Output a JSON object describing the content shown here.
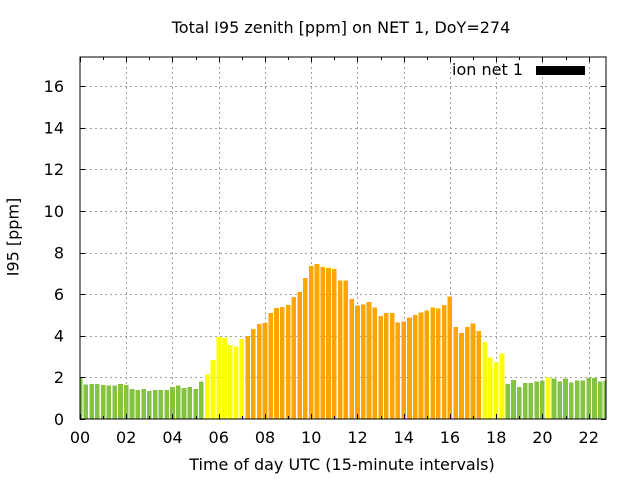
{
  "chart_data": {
    "type": "bar",
    "title": "Total I95 zenith [ppm] on NET 1, DoY=274",
    "xlabel": "Time of day UTC (15-minute intervals)",
    "ylabel": "I95 [ppm]",
    "xlim": [
      0,
      22.75
    ],
    "ylim": [
      0,
      17.4
    ],
    "grid": true,
    "x_ticks": [
      0,
      2,
      4,
      6,
      8,
      10,
      12,
      14,
      16,
      18,
      20,
      22
    ],
    "x_tick_labels": [
      "00",
      "02",
      "04",
      "06",
      "08",
      "10",
      "12",
      "14",
      "16",
      "18",
      "20",
      "22"
    ],
    "x_minor_ticks": [
      1,
      3,
      5,
      7,
      9,
      11,
      13,
      15,
      17,
      19,
      21
    ],
    "y_ticks": [
      0,
      2,
      4,
      6,
      8,
      10,
      12,
      14,
      16
    ],
    "y_tick_labels": [
      "0",
      "2",
      "4",
      "6",
      "8",
      "10",
      "12",
      "14",
      "16"
    ],
    "legend": {
      "position": "top-right",
      "entries": [
        {
          "label": "ion net 1",
          "color": "#000000"
        }
      ]
    },
    "color_levels": [
      {
        "from": 0,
        "to": 2,
        "color": "#84c241"
      },
      {
        "from": 2,
        "to": 4,
        "color": "#ffff00"
      },
      {
        "from": 4,
        "to": null,
        "color": "#ffa500"
      }
    ],
    "series": [
      {
        "name": "ion net 1",
        "x_unit": "hours UTC",
        "x": [
          0,
          0.25,
          0.5,
          0.75,
          1,
          1.25,
          1.5,
          1.75,
          2,
          2.25,
          2.5,
          2.75,
          3,
          3.25,
          3.5,
          3.75,
          4,
          4.25,
          4.5,
          4.75,
          5,
          5.25,
          5.5,
          5.75,
          6,
          6.25,
          6.5,
          6.75,
          7,
          7.25,
          7.5,
          7.75,
          8,
          8.25,
          8.5,
          8.75,
          9,
          9.25,
          9.5,
          9.75,
          10,
          10.25,
          10.5,
          10.75,
          11,
          11.25,
          11.5,
          11.75,
          12,
          12.25,
          12.5,
          12.75,
          13,
          13.25,
          13.5,
          13.75,
          14,
          14.25,
          14.5,
          14.75,
          15,
          15.25,
          15.5,
          15.75,
          16,
          16.25,
          16.5,
          16.75,
          17,
          17.25,
          17.5,
          17.75,
          18,
          18.25,
          18.5,
          18.75,
          19,
          19.25,
          19.5,
          19.75,
          20,
          20.25,
          20.5,
          20.75,
          21,
          21.25,
          21.5,
          21.75,
          22,
          22.25,
          22.5,
          22.75
        ],
        "values": [
          1.98,
          1.65,
          1.68,
          1.68,
          1.63,
          1.6,
          1.6,
          1.68,
          1.63,
          1.45,
          1.4,
          1.45,
          1.35,
          1.4,
          1.4,
          1.4,
          1.55,
          1.6,
          1.5,
          1.55,
          1.45,
          1.8,
          2.14,
          2.84,
          3.94,
          3.89,
          3.56,
          3.48,
          3.85,
          4.0,
          4.33,
          4.57,
          4.62,
          5.1,
          5.34,
          5.39,
          5.48,
          5.87,
          6.11,
          6.78,
          7.36,
          7.45,
          7.31,
          7.26,
          7.21,
          6.65,
          6.65,
          5.78,
          5.45,
          5.5,
          5.63,
          5.35,
          4.95,
          5.1,
          5.1,
          4.63,
          4.68,
          4.87,
          5.01,
          5.11,
          5.21,
          5.35,
          5.3,
          5.49,
          5.88,
          4.43,
          4.14,
          4.43,
          4.58,
          4.24,
          3.71,
          2.95,
          2.71,
          3.15,
          1.69,
          1.88,
          1.54,
          1.74,
          1.74,
          1.8,
          1.85,
          2.0,
          1.94,
          1.8,
          1.94,
          1.75,
          1.85,
          1.85,
          1.98,
          1.98,
          1.8,
          1.85
        ]
      }
    ]
  }
}
